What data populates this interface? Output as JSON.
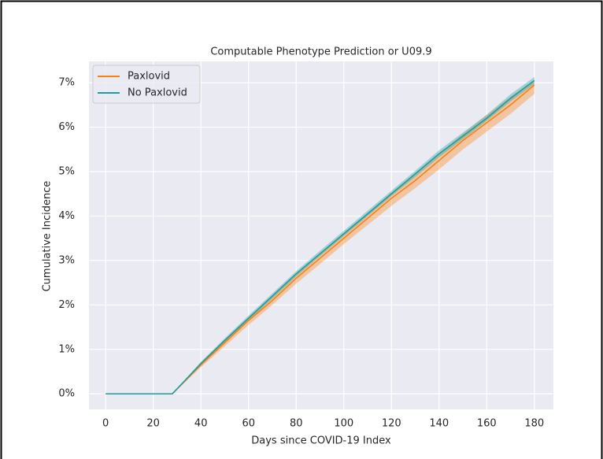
{
  "chart_data": {
    "type": "line",
    "title": "Computable Phenotype Prediction or U09.9",
    "xlabel": "Days since COVID-19 Index",
    "ylabel": "Cumulative Incidence",
    "x": [
      0,
      28,
      40,
      50,
      60,
      70,
      80,
      90,
      100,
      110,
      120,
      130,
      140,
      150,
      160,
      170,
      180
    ],
    "series": [
      {
        "name": "Paxlovid",
        "color": "#ff7f0e",
        "values": [
          0,
          0,
          0.65,
          1.15,
          1.65,
          2.1,
          2.6,
          3.05,
          3.5,
          3.95,
          4.4,
          4.8,
          5.25,
          5.7,
          6.1,
          6.5,
          6.95
        ],
        "lower": [
          0,
          0,
          0.6,
          1.07,
          1.55,
          2.0,
          2.48,
          2.92,
          3.37,
          3.8,
          4.23,
          4.63,
          5.05,
          5.5,
          5.9,
          6.3,
          6.75
        ],
        "upper": [
          0,
          0,
          0.7,
          1.22,
          1.73,
          2.2,
          2.7,
          3.16,
          3.62,
          4.07,
          4.53,
          4.95,
          5.4,
          5.85,
          6.27,
          6.68,
          7.05
        ]
      },
      {
        "name": "No Paxlovid",
        "color": "#1a9e9e",
        "values": [
          0,
          0,
          0.68,
          1.2,
          1.7,
          2.2,
          2.7,
          3.15,
          3.6,
          4.05,
          4.5,
          4.95,
          5.4,
          5.8,
          6.2,
          6.65,
          7.05
        ],
        "lower": [
          0,
          0,
          0.64,
          1.15,
          1.65,
          2.14,
          2.64,
          3.1,
          3.55,
          4.0,
          4.45,
          4.88,
          5.32,
          5.73,
          6.14,
          6.58,
          6.97
        ],
        "upper": [
          0,
          0,
          0.72,
          1.25,
          1.76,
          2.26,
          2.76,
          3.22,
          3.67,
          4.12,
          4.57,
          5.02,
          5.48,
          5.88,
          6.28,
          6.74,
          7.13
        ]
      }
    ],
    "xlim": [
      -7,
      188
    ],
    "ylim": [
      -0.35,
      7.48
    ],
    "xticks": [
      0,
      20,
      40,
      60,
      80,
      100,
      120,
      140,
      160,
      180
    ],
    "yticks": [
      {
        "value": 0,
        "label": "0%"
      },
      {
        "value": 1,
        "label": "1%"
      },
      {
        "value": 2,
        "label": "2%"
      },
      {
        "value": 3,
        "label": "3%"
      },
      {
        "value": 4,
        "label": "4%"
      },
      {
        "value": 5,
        "label": "5%"
      },
      {
        "value": 6,
        "label": "6%"
      },
      {
        "value": 7,
        "label": "7%"
      }
    ],
    "grid": true,
    "legend": "upper-left"
  }
}
